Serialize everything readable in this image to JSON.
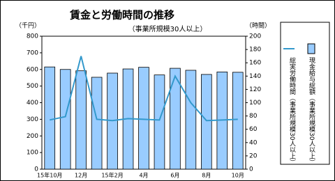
{
  "chart_data": {
    "type": "bar_line",
    "title": "賃金と労働時間の推移",
    "subtitle": "（事業所規模30人以上）",
    "y_label": "（千円）",
    "y2_label": "（時間）",
    "categories": [
      "15年10月",
      null,
      "12月",
      null,
      "15年2月",
      null,
      "4月",
      null,
      "6月",
      null,
      "8月",
      null,
      "10月"
    ],
    "series": [
      {
        "name": "現金給与総額（事業所規模30人以上）",
        "color": "#99ccff",
        "values": [
          615,
          600,
          592,
          553,
          578,
          603,
          613,
          567,
          607,
          595,
          570,
          585,
          583
        ]
      },
      {
        "name": "総実労働時間（事業所規模30人以上）",
        "color": "#3399cc",
        "axis": "y2",
        "values": [
          74,
          79,
          170,
          75,
          73,
          76,
          75,
          74,
          140,
          100,
          73,
          74,
          75
        ]
      }
    ],
    "ylim": [
      0,
      800
    ],
    "yticks": [
      0,
      100,
      200,
      300,
      400,
      500,
      600,
      700,
      800
    ],
    "y2lim": [
      0,
      200
    ],
    "y2ticks": [
      0,
      20,
      40,
      60,
      80,
      100,
      120,
      140,
      160,
      180,
      200
    ]
  }
}
